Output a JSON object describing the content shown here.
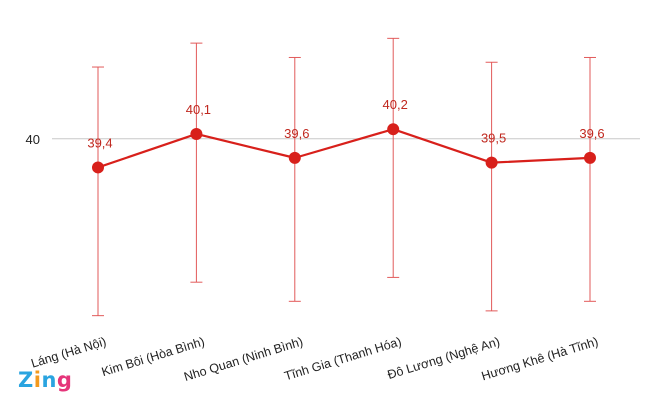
{
  "chart_data": {
    "type": "line",
    "categories": [
      "Láng (Hà Nội)",
      "Kim Bôi (Hòa Bình)",
      "Nho Quan (Ninh Bình)",
      "Tĩnh Gia (Thanh Hóa)",
      "Đô Lương (Nghệ An)",
      "Hương Khê (Hà Tĩnh)"
    ],
    "values": [
      39.4,
      40.1,
      39.6,
      40.2,
      39.5,
      39.6
    ],
    "data_labels": [
      "39,4",
      "40,1",
      "39,6",
      "40,2",
      "39,5",
      "39,6"
    ],
    "error_bars": {
      "upper": [
        41.5,
        42.0,
        41.7,
        42.1,
        41.6,
        41.7
      ],
      "lower": [
        36.3,
        37.0,
        36.6,
        37.1,
        36.4,
        36.6
      ]
    },
    "y_ticks": [
      40
    ],
    "y_tick_labels": [
      "40"
    ],
    "ylim": [
      36.0,
      42.4
    ],
    "grid": "horizontal line at 40",
    "colors": {
      "line": "#d8201b",
      "point": "#d8201b",
      "error_bar": "#e25a5a",
      "gridline": "#c8c8c8",
      "label": "#c0281f"
    }
  },
  "logo": {
    "letters": [
      {
        "text": "Z",
        "color": "#2aa4e0"
      },
      {
        "text": "i",
        "color": "#f39a1f"
      },
      {
        "text": "n",
        "color": "#2aa4e0"
      },
      {
        "text": "g",
        "color": "#e5357a"
      }
    ]
  }
}
